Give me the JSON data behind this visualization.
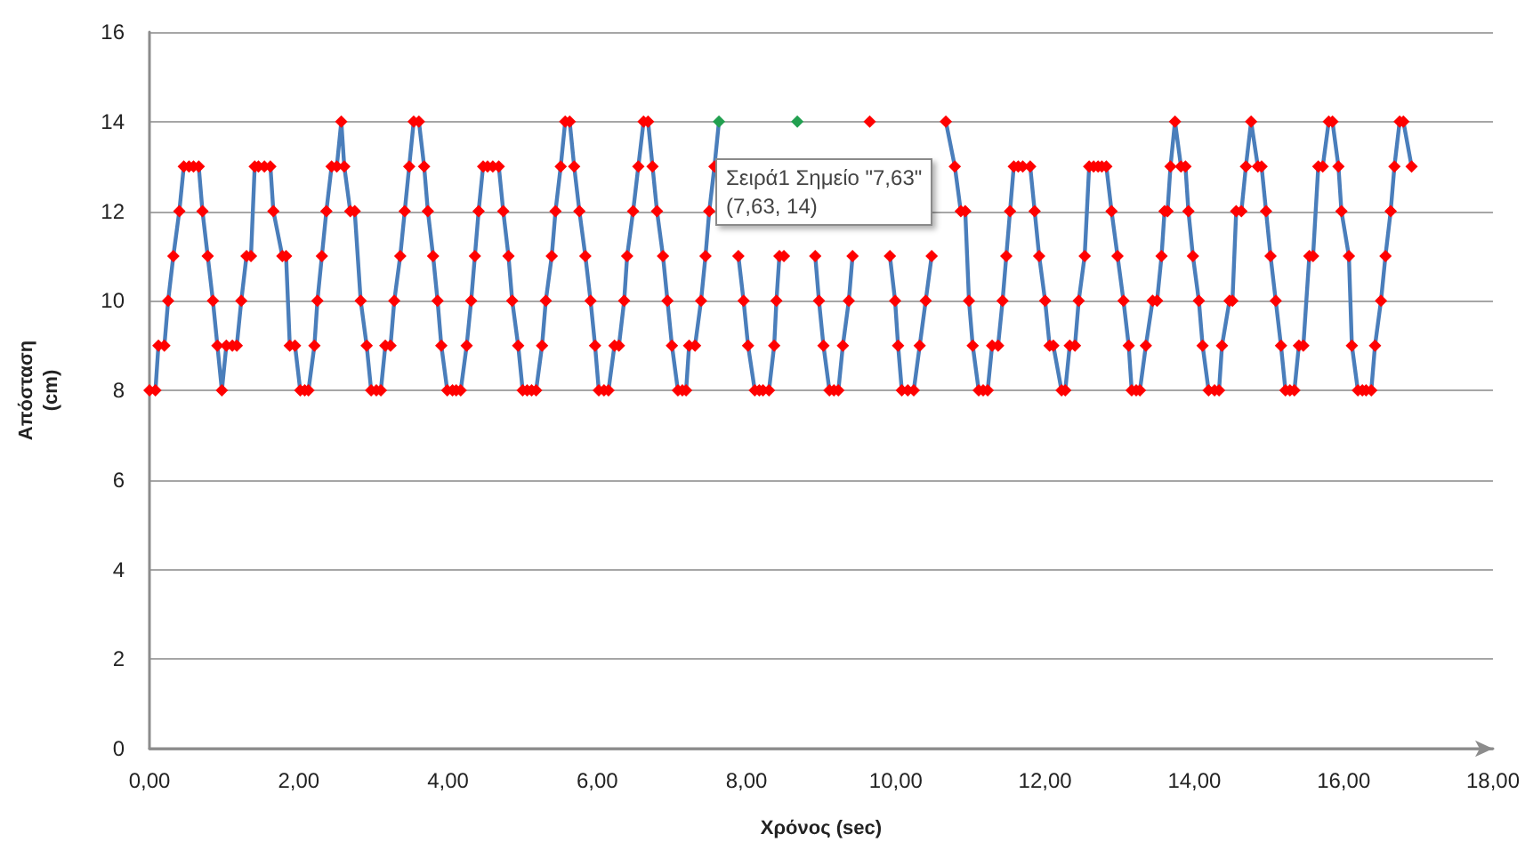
{
  "chart_data": {
    "type": "line",
    "xlabel": "Χρόνος (sec)",
    "ylabel": "Απόσταση\n(cm)",
    "xlim": [
      0,
      18
    ],
    "xticks": [
      {
        "value": 0,
        "label": "0,00"
      },
      {
        "value": 2,
        "label": "2,00"
      },
      {
        "value": 4,
        "label": "4,00"
      },
      {
        "value": 6,
        "label": "6,00"
      },
      {
        "value": 8,
        "label": "8,00"
      },
      {
        "value": 10,
        "label": "10,00"
      },
      {
        "value": 12,
        "label": "12,00"
      },
      {
        "value": 14,
        "label": "14,00"
      },
      {
        "value": 16,
        "label": "16,00"
      },
      {
        "value": 18,
        "label": "18,00"
      }
    ],
    "ylim": [
      0,
      16
    ],
    "yticks": [
      0,
      2,
      4,
      6,
      8,
      10,
      12,
      14,
      16
    ],
    "grid": "y",
    "marker": "diamond",
    "line_style": "solid",
    "annotations": [
      {
        "text": "Σειρά1 Σημείο \"7,63\"\n(7,63, 14)",
        "x": 7.63,
        "y": 14
      }
    ],
    "series": [
      {
        "color": "#4a7ebb",
        "x": [
          0.0,
          0.08,
          0.12,
          0.2,
          0.25,
          0.32,
          0.4,
          0.46,
          0.53,
          0.59,
          0.66,
          0.71,
          0.78,
          0.85,
          0.91,
          0.97,
          1.03,
          1.11,
          1.17,
          1.23,
          1.3,
          1.36,
          1.41,
          1.46,
          1.54,
          1.62,
          1.66,
          1.78,
          1.83,
          1.88,
          1.95,
          2.02,
          2.08,
          2.13,
          2.21,
          2.25,
          2.31,
          2.37,
          2.44,
          2.51,
          2.57,
          2.61,
          2.69,
          2.75,
          2.83,
          2.91,
          2.97,
          3.04,
          3.1,
          3.16,
          3.23,
          3.28,
          3.36,
          3.42,
          3.48,
          3.54,
          3.61,
          3.68,
          3.73,
          3.8,
          3.86,
          3.91,
          3.99,
          4.06,
          4.11,
          4.17,
          4.25,
          4.31,
          4.36,
          4.41,
          4.47,
          4.53,
          4.6,
          4.68,
          4.74,
          4.81,
          4.86,
          4.94,
          5.0,
          5.06,
          5.12,
          5.18,
          5.26,
          5.31,
          5.39,
          5.44,
          5.51,
          5.57,
          5.63,
          5.69,
          5.76,
          5.84,
          5.91,
          5.97,
          6.02,
          6.09,
          6.15,
          6.23,
          6.29,
          6.36,
          6.4,
          6.48,
          6.55,
          6.62,
          6.68,
          6.74,
          6.8,
          6.88,
          6.94,
          7.0,
          7.08,
          7.14,
          7.19,
          7.23,
          7.31,
          7.39,
          7.45,
          7.5,
          7.57,
          7.63,
          7.71,
          7.76,
          7.89,
          7.96,
          8.02,
          8.11,
          8.17,
          8.22,
          8.3,
          8.37,
          8.4,
          8.44,
          8.5,
          8.56,
          8.62,
          8.68,
          8.75,
          8.82,
          8.92,
          8.97,
          9.03,
          9.11,
          9.17,
          9.23,
          9.29,
          9.37,
          9.42,
          9.49,
          9.57,
          9.65,
          9.73,
          9.8,
          9.92,
          9.99,
          10.03,
          10.08,
          10.16,
          10.24,
          10.32,
          10.4,
          10.48,
          10.53,
          10.6,
          10.67,
          10.79,
          10.87,
          10.93,
          10.98,
          11.03,
          11.11,
          11.17,
          11.23,
          11.29,
          11.37,
          11.43,
          11.48,
          11.53,
          11.58,
          11.64,
          11.7,
          11.8,
          11.86,
          11.92,
          12.0,
          12.06,
          12.11,
          12.22,
          12.27,
          12.33,
          12.4,
          12.45,
          12.53,
          12.59,
          12.65,
          12.71,
          12.76,
          12.82,
          12.89,
          12.97,
          13.05,
          13.12,
          13.16,
          13.22,
          13.27,
          13.35,
          13.44,
          13.5,
          13.56,
          13.6,
          13.64,
          13.68,
          13.74,
          13.82,
          13.88,
          13.92,
          13.98,
          14.06,
          14.11,
          14.19,
          14.27,
          14.33,
          14.37,
          14.47,
          14.51,
          14.56,
          14.63,
          14.69,
          14.76,
          14.85,
          14.9,
          14.96,
          15.02,
          15.09,
          15.16,
          15.22,
          15.28,
          15.34,
          15.4,
          15.46,
          15.54,
          15.59,
          15.66,
          15.72,
          15.8,
          15.85,
          15.93,
          15.97,
          16.07,
          16.11,
          16.19,
          16.25,
          16.3,
          16.37,
          16.42,
          16.5,
          16.56,
          16.63,
          16.68,
          16.75,
          16.8,
          16.91
        ],
        "values": [
          8,
          8,
          9,
          9,
          10,
          11,
          12,
          13,
          13,
          13,
          13,
          12,
          11,
          10,
          9,
          8,
          9,
          9,
          9,
          10,
          11,
          11,
          13,
          13,
          13,
          13,
          12,
          11,
          11,
          9,
          9,
          8,
          8,
          8,
          9,
          10,
          11,
          12,
          13,
          13,
          14,
          13,
          12,
          12,
          10,
          9,
          8,
          8,
          8,
          9,
          9,
          10,
          11,
          12,
          13,
          14,
          14,
          13,
          12,
          11,
          10,
          9,
          8,
          8,
          8,
          8,
          9,
          10,
          11,
          12,
          13,
          13,
          13,
          13,
          12,
          11,
          10,
          9,
          8,
          8,
          8,
          8,
          9,
          10,
          11,
          12,
          13,
          14,
          14,
          13,
          12,
          11,
          10,
          9,
          8,
          8,
          8,
          9,
          9,
          10,
          11,
          12,
          13,
          14,
          14,
          13,
          12,
          11,
          10,
          9,
          8,
          8,
          8,
          9,
          9,
          10,
          11,
          12,
          13,
          14,
          null,
          null,
          11,
          10,
          9,
          8,
          8,
          8,
          8,
          9,
          10,
          11,
          11,
          null,
          null,
          14,
          null,
          null,
          11,
          10,
          9,
          8,
          8,
          8,
          9,
          10,
          11,
          null,
          null,
          14,
          null,
          null,
          11,
          10,
          9,
          8,
          8,
          8,
          9,
          10,
          11,
          null,
          null,
          14,
          13,
          12,
          12,
          10,
          9,
          8,
          8,
          8,
          9,
          9,
          10,
          11,
          12,
          13,
          13,
          13,
          13,
          12,
          11,
          10,
          9,
          9,
          8,
          8,
          9,
          9,
          10,
          11,
          13,
          13,
          13,
          13,
          13,
          12,
          11,
          10,
          9,
          8,
          8,
          8,
          9,
          10,
          10,
          11,
          12,
          12,
          13,
          14,
          13,
          13,
          12,
          11,
          10,
          9,
          8,
          8,
          8,
          9,
          10,
          10,
          12,
          12,
          13,
          14,
          13,
          13,
          12,
          11,
          10,
          9,
          8,
          8,
          8,
          9,
          9,
          11,
          11,
          13,
          13,
          14,
          14,
          13,
          12,
          11,
          9,
          8,
          8,
          8,
          8,
          9,
          10,
          11,
          12,
          13,
          14,
          14,
          13
        ],
        "colors": [
          "#ff0000",
          "#ff0000",
          "#ff0000",
          "#ff0000",
          "#ff0000",
          "#ff0000",
          "#ff0000",
          "#ff0000",
          "#ff0000",
          "#ff0000",
          "#ff0000",
          "#ff0000",
          "#ff0000",
          "#ff0000",
          "#ff0000",
          "#ff0000",
          "#ff0000",
          "#ff0000",
          "#ff0000",
          "#ff0000",
          "#ff0000",
          "#ff0000",
          "#ff0000",
          "#ff0000",
          "#ff0000",
          "#ff0000",
          "#ff0000",
          "#ff0000",
          "#ff0000",
          "#ff0000",
          "#ff0000",
          "#ff0000",
          "#ff0000",
          "#ff0000",
          "#ff0000",
          "#ff0000",
          "#ff0000",
          "#ff0000",
          "#ff0000",
          "#ff0000",
          "#ff0000",
          "#ff0000",
          "#ff0000",
          "#ff0000",
          "#ff0000",
          "#ff0000",
          "#ff0000",
          "#ff0000",
          "#ff0000",
          "#ff0000",
          "#ff0000",
          "#ff0000",
          "#ff0000",
          "#ff0000",
          "#ff0000",
          "#ff0000",
          "#ff0000",
          "#ff0000",
          "#ff0000",
          "#ff0000",
          "#ff0000",
          "#ff0000",
          "#ff0000",
          "#ff0000",
          "#ff0000",
          "#ff0000",
          "#ff0000",
          "#ff0000",
          "#ff0000",
          "#ff0000",
          "#ff0000",
          "#ff0000",
          "#ff0000",
          "#ff0000",
          "#ff0000",
          "#ff0000",
          "#ff0000",
          "#ff0000",
          "#ff0000",
          "#ff0000",
          "#ff0000",
          "#ff0000",
          "#ff0000",
          "#ff0000",
          "#ff0000",
          "#ff0000",
          "#ff0000",
          "#ff0000",
          "#ff0000",
          "#ff0000",
          "#ff0000",
          "#ff0000",
          "#ff0000",
          "#ff0000",
          "#ff0000",
          "#ff0000",
          "#ff0000",
          "#ff0000",
          "#ff0000",
          "#ff0000",
          "#ff0000",
          "#ff0000",
          "#ff0000",
          "#ff0000",
          "#ff0000",
          "#ff0000",
          "#ff0000",
          "#ff0000",
          "#ff0000",
          "#ff0000",
          "#ff0000",
          "#ff0000",
          "#ff0000",
          "#ff0000",
          "#ff0000",
          "#ff0000",
          "#ff0000",
          "#ff0000",
          "#ff0000",
          "#22a050",
          "#ff0000",
          "#ff0000",
          "#ff0000",
          "#ff0000",
          "#ff0000",
          "#ff0000",
          "#ff0000",
          "#ff0000",
          "#ff0000",
          "#ff0000",
          "#ff0000",
          "#ff0000",
          "#ff0000",
          "#ff0000",
          "#ff0000",
          "#22a050",
          "#ff0000",
          "#ff0000",
          "#ff0000",
          "#ff0000",
          "#ff0000",
          "#ff0000",
          "#ff0000",
          "#ff0000",
          "#ff0000",
          "#ff0000",
          "#ff0000",
          "#ff0000",
          "#ff0000",
          "#ff0000",
          "#ff0000",
          "#ff0000",
          "#ff0000",
          "#ff0000",
          "#ff0000",
          "#ff0000",
          "#ff0000",
          "#ff0000",
          "#ff0000",
          "#ff0000",
          "#ff0000",
          "#ff0000",
          "#ff0000",
          "#ff0000",
          "#ff0000",
          "#ff0000",
          "#ff0000",
          "#ff0000",
          "#ff0000",
          "#ff0000",
          "#ff0000",
          "#ff0000",
          "#ff0000",
          "#ff0000",
          "#ff0000",
          "#ff0000",
          "#ff0000",
          "#ff0000",
          "#ff0000",
          "#ff0000",
          "#ff0000",
          "#ff0000",
          "#ff0000",
          "#ff0000",
          "#ff0000",
          "#ff0000",
          "#ff0000",
          "#ff0000",
          "#ff0000",
          "#ff0000",
          "#ff0000",
          "#ff0000",
          "#ff0000",
          "#ff0000",
          "#ff0000",
          "#ff0000",
          "#ff0000",
          "#ff0000",
          "#ff0000",
          "#ff0000",
          "#ff0000",
          "#ff0000",
          "#ff0000",
          "#ff0000",
          "#ff0000",
          "#ff0000",
          "#ff0000",
          "#ff0000",
          "#ff0000",
          "#ff0000",
          "#ff0000",
          "#ff0000",
          "#ff0000",
          "#ff0000",
          "#ff0000",
          "#ff0000",
          "#ff0000",
          "#ff0000",
          "#ff0000",
          "#ff0000",
          "#ff0000",
          "#ff0000",
          "#ff0000",
          "#ff0000",
          "#ff0000",
          "#ff0000",
          "#ff0000",
          "#ff0000",
          "#ff0000",
          "#ff0000",
          "#ff0000",
          "#ff0000",
          "#ff0000",
          "#ff0000",
          "#ff0000",
          "#ff0000",
          "#ff0000",
          "#ff0000",
          "#ff0000",
          "#ff0000",
          "#ff0000",
          "#ff0000",
          "#ff0000",
          "#ff0000",
          "#ff0000",
          "#ff0000",
          "#ff0000",
          "#ff0000",
          "#ff0000",
          "#ff0000",
          "#ff0000",
          "#ff0000",
          "#ff0000",
          "#ff0000",
          "#ff0000",
          "#ff0000",
          "#ff0000",
          "#ff0000",
          "#ff0000",
          "#ff0000",
          "#ff0000"
        ]
      }
    ]
  }
}
